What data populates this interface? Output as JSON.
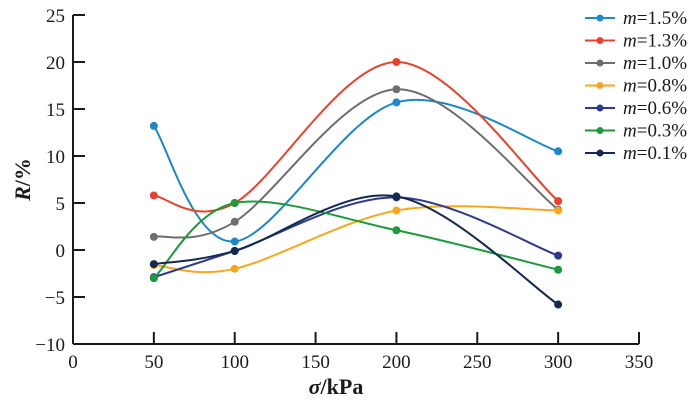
{
  "chart_data": {
    "type": "line",
    "title": "",
    "xlabel": "σ /kPa",
    "xlabel_symbol": "σ",
    "xlabel_unit": "/kPa",
    "ylabel": "R/%",
    "ylabel_symbol": "R",
    "ylabel_unit": "/%",
    "xlim": [
      0,
      350
    ],
    "ylim": [
      -10,
      25
    ],
    "xticks": [
      0,
      50,
      100,
      150,
      200,
      250,
      300,
      350
    ],
    "yticks": [
      -10,
      -5,
      0,
      5,
      10,
      15,
      20,
      25
    ],
    "xtick_labels": [
      "0",
      "50",
      "100",
      "150",
      "200",
      "250",
      "300",
      "350"
    ],
    "ytick_labels": [
      "−10",
      "−5",
      "0",
      "5",
      "10",
      "15",
      "20",
      "25"
    ],
    "grid": false,
    "legend_position": "top-right",
    "smooth": true,
    "x": [
      50,
      100,
      200,
      300
    ],
    "series": [
      {
        "name": "m=1.5%",
        "symbol": "m",
        "label_rest": "=1.5%",
        "color": "#1a88c9",
        "values": [
          13.2,
          0.9,
          15.7,
          10.5
        ]
      },
      {
        "name": "m=1.3%",
        "symbol": "m",
        "label_rest": "=1.3%",
        "color": "#e8412c",
        "values": [
          5.8,
          5.0,
          20.0,
          5.2
        ]
      },
      {
        "name": "m=1.0%",
        "symbol": "m",
        "label_rest": "=1.0%",
        "color": "#6e6e6e",
        "values": [
          1.4,
          3.0,
          17.1,
          4.3
        ]
      },
      {
        "name": "m=0.8%",
        "symbol": "m",
        "label_rest": "=0.8%",
        "color": "#f5a81c",
        "values": [
          -1.6,
          -2.0,
          4.2,
          4.2
        ]
      },
      {
        "name": "m=0.6%",
        "symbol": "m",
        "label_rest": "=0.6%",
        "color": "#2e3a8f",
        "values": [
          -2.9,
          -0.1,
          5.6,
          -0.6
        ]
      },
      {
        "name": "m=0.3%",
        "symbol": "m",
        "label_rest": "=0.3%",
        "color": "#1c9a3c",
        "values": [
          -3.0,
          5.0,
          2.1,
          -2.1
        ]
      },
      {
        "name": "m=0.1%",
        "symbol": "m",
        "label_rest": "=0.1%",
        "color": "#15294f",
        "values": [
          -1.5,
          -0.1,
          5.7,
          -5.8
        ]
      }
    ]
  }
}
